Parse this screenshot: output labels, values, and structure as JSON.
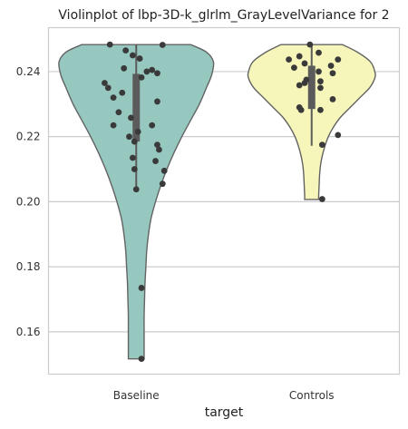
{
  "chart_data": {
    "type": "violin",
    "title": "Violinplot of lbp-3D-k_glrlm_GrayLevelVariance for 2",
    "xlabel": "target",
    "ylabel": "",
    "ylim": [
      0.147,
      0.2535
    ],
    "y_ticks": [
      0.16,
      0.18,
      0.2,
      0.22,
      0.24
    ],
    "y_tick_labels": [
      "0.16",
      "0.18",
      "0.20",
      "0.22",
      "0.24"
    ],
    "grid": "horizontal",
    "categories": [
      "Baseline",
      "Controls"
    ],
    "colors": {
      "Baseline": "#96c8c0",
      "Controls": "#f6f6ba",
      "points": "#3a3a3a",
      "box": "#5b5b5b",
      "edge": "#636363"
    },
    "series": [
      {
        "name": "Baseline",
        "violin": {
          "y": [
            0.2483,
            0.246,
            0.243,
            0.239,
            0.235,
            0.23,
            0.225,
            0.22,
            0.215,
            0.21,
            0.205,
            0.2,
            0.195,
            0.19,
            0.185,
            0.18,
            0.175,
            0.17,
            0.165,
            0.16,
            0.155,
            0.1517
          ],
          "half_width": [
            0.62,
            0.8,
            0.88,
            0.86,
            0.8,
            0.72,
            0.62,
            0.52,
            0.43,
            0.35,
            0.28,
            0.22,
            0.17,
            0.14,
            0.12,
            0.11,
            0.1,
            0.095,
            0.09,
            0.09,
            0.09,
            0.09
          ]
        },
        "box": {
          "q1": 0.2185,
          "median": 0.2297,
          "q3": 0.2393,
          "whisker_low": 0.2039,
          "whisker_high": 0.2483
        },
        "points": [
          {
            "jitter": -0.15,
            "y": 0.2483
          },
          {
            "jitter": 0.15,
            "y": 0.2482
          },
          {
            "jitter": -0.06,
            "y": 0.2465
          },
          {
            "jitter": -0.02,
            "y": 0.245
          },
          {
            "jitter": 0.02,
            "y": 0.244
          },
          {
            "jitter": -0.07,
            "y": 0.241
          },
          {
            "jitter": 0.09,
            "y": 0.2405
          },
          {
            "jitter": 0.06,
            "y": 0.24
          },
          {
            "jitter": 0.12,
            "y": 0.2395
          },
          {
            "jitter": 0.03,
            "y": 0.2382
          },
          {
            "jitter": -0.18,
            "y": 0.2365
          },
          {
            "jitter": -0.16,
            "y": 0.235
          },
          {
            "jitter": -0.08,
            "y": 0.2335
          },
          {
            "jitter": -0.13,
            "y": 0.232
          },
          {
            "jitter": 0.12,
            "y": 0.2308
          },
          {
            "jitter": -0.1,
            "y": 0.2275
          },
          {
            "jitter": -0.03,
            "y": 0.2258
          },
          {
            "jitter": 0.09,
            "y": 0.2235
          },
          {
            "jitter": -0.13,
            "y": 0.2235
          },
          {
            "jitter": 0.01,
            "y": 0.2215
          },
          {
            "jitter": -0.04,
            "y": 0.22
          },
          {
            "jitter": -0.01,
            "y": 0.2185
          },
          {
            "jitter": 0.12,
            "y": 0.2175
          },
          {
            "jitter": 0.13,
            "y": 0.216
          },
          {
            "jitter": -0.02,
            "y": 0.2135
          },
          {
            "jitter": 0.11,
            "y": 0.2125
          },
          {
            "jitter": -0.01,
            "y": 0.21
          },
          {
            "jitter": 0.16,
            "y": 0.2095
          },
          {
            "jitter": 0.15,
            "y": 0.2055
          },
          {
            "jitter": 0.0,
            "y": 0.2038
          },
          {
            "jitter": 0.03,
            "y": 0.1735
          },
          {
            "jitter": 0.03,
            "y": 0.1517
          }
        ]
      },
      {
        "name": "Controls",
        "violin": {
          "y": [
            0.2483,
            0.246,
            0.243,
            0.24,
            0.238,
            0.235,
            0.232,
            0.229,
            0.226,
            0.223,
            0.22,
            0.217,
            0.214,
            0.211,
            0.208,
            0.205,
            0.202,
            0.2007
          ],
          "half_width": [
            0.35,
            0.52,
            0.67,
            0.72,
            0.72,
            0.66,
            0.55,
            0.44,
            0.33,
            0.25,
            0.19,
            0.15,
            0.12,
            0.1,
            0.09,
            0.085,
            0.08,
            0.08
          ]
        },
        "box": {
          "q1": 0.2285,
          "median": 0.2355,
          "q3": 0.2418,
          "whisker_low": 0.2172,
          "whisker_high": 0.2483
        },
        "points": [
          {
            "jitter": -0.01,
            "y": 0.2483
          },
          {
            "jitter": 0.04,
            "y": 0.2458
          },
          {
            "jitter": -0.07,
            "y": 0.2447
          },
          {
            "jitter": 0.15,
            "y": 0.2437
          },
          {
            "jitter": -0.13,
            "y": 0.2437
          },
          {
            "jitter": -0.04,
            "y": 0.2425
          },
          {
            "jitter": 0.11,
            "y": 0.2418
          },
          {
            "jitter": -0.1,
            "y": 0.2412
          },
          {
            "jitter": 0.04,
            "y": 0.24
          },
          {
            "jitter": 0.12,
            "y": 0.2395
          },
          {
            "jitter": -0.03,
            "y": 0.2375
          },
          {
            "jitter": 0.05,
            "y": 0.237
          },
          {
            "jitter": -0.04,
            "y": 0.2365
          },
          {
            "jitter": -0.07,
            "y": 0.2358
          },
          {
            "jitter": 0.05,
            "y": 0.235
          },
          {
            "jitter": 0.12,
            "y": 0.2315
          },
          {
            "jitter": -0.07,
            "y": 0.229
          },
          {
            "jitter": -0.06,
            "y": 0.2282
          },
          {
            "jitter": 0.05,
            "y": 0.2282
          },
          {
            "jitter": 0.15,
            "y": 0.2205
          },
          {
            "jitter": 0.06,
            "y": 0.2175
          },
          {
            "jitter": 0.06,
            "y": 0.2008
          }
        ]
      }
    ]
  }
}
